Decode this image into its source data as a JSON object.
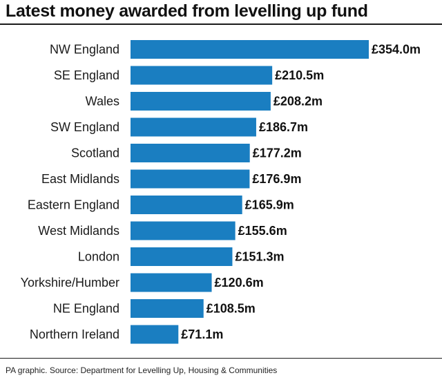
{
  "title": "Latest money awarded from levelling up fund",
  "source": "PA graphic. Source: Department for Levelling Up, Housing & Communities",
  "colors": {
    "bar": "#1a7ec1"
  },
  "chart_data": {
    "type": "bar",
    "orientation": "horizontal",
    "title": "Latest money awarded from levelling up fund",
    "categories": [
      "NW England",
      "SE England",
      "Wales",
      "SW England",
      "Scotland",
      "East Midlands",
      "Eastern England",
      "West Midlands",
      "London",
      "Yorkshire/Humber",
      "NE England",
      "Northern Ireland"
    ],
    "values": [
      354.0,
      210.5,
      208.2,
      186.7,
      177.2,
      176.9,
      165.9,
      155.6,
      151.3,
      120.6,
      108.5,
      71.1
    ],
    "value_labels": [
      "£354.0m",
      "£210.5m",
      "£208.2m",
      "£186.7m",
      "£177.2m",
      "£176.9m",
      "£165.9m",
      "£155.6m",
      "£151.3m",
      "£120.6m",
      "£108.5m",
      "£71.1m"
    ],
    "unit": "£m",
    "xlim": [
      0,
      354.0
    ],
    "grid": false,
    "legend": false
  }
}
